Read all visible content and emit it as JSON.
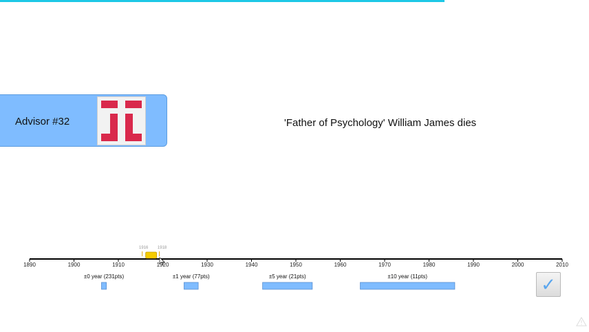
{
  "progress": {
    "fraction": 0.755
  },
  "advisor": {
    "label": "Advisor #32",
    "avatar_icon": "red-glyph-logo"
  },
  "event": {
    "text": "'Father of Psychology' William James dies"
  },
  "timeline": {
    "min_year": 1890,
    "max_year": 2010,
    "ticks": [
      "1890",
      "1900",
      "1910",
      "1920",
      "1930",
      "1940",
      "1950",
      "1960",
      "1970",
      "1980",
      "1990",
      "2000",
      "2010"
    ],
    "guess": {
      "low_label": "1916",
      "high_label": "1918",
      "low": 1916,
      "high": 1918
    }
  },
  "score_bands": [
    {
      "label": "±0 year (231pts)",
      "from": 1906.2,
      "to": 1907.3
    },
    {
      "label": "±1 year (77pts)",
      "from": 1924.8,
      "to": 1928.0
    },
    {
      "label": "±5 year (21pts)",
      "from": 1942.5,
      "to": 1953.7
    },
    {
      "label": "±10 year (11pts)",
      "from": 1964.5,
      "to": 1985.8
    }
  ],
  "submit": {
    "glyph": "✓",
    "icon": "checkmark-icon"
  },
  "colors": {
    "accent": "#1ec8e6",
    "card": "#7fbcff",
    "band": "#7fbcff",
    "guess": "#f5cc00",
    "logo": "#d9294c"
  }
}
